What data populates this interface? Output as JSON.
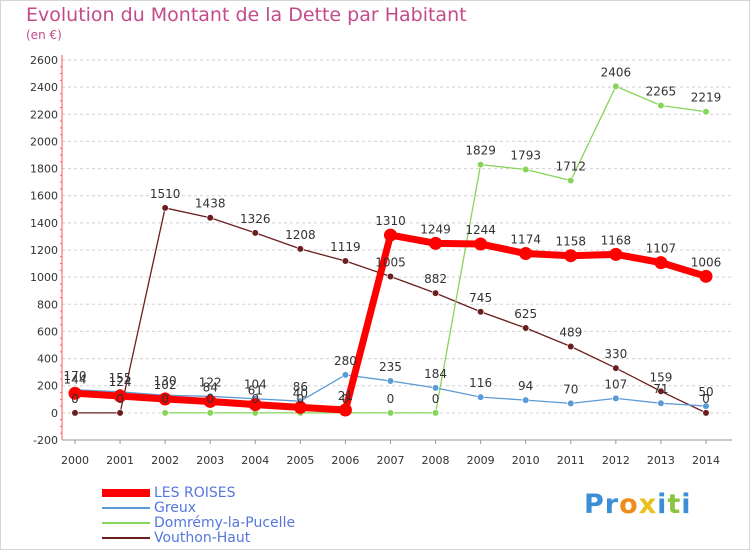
{
  "chart_data": {
    "type": "line",
    "title": "Evolution du Montant de la Dette par Habitant",
    "subtitle": "(en €)",
    "x": [
      "2000",
      "2001",
      "2002",
      "2003",
      "2004",
      "2005",
      "2006",
      "2007",
      "2008",
      "2009",
      "2010",
      "2011",
      "2012",
      "2013",
      "2014"
    ],
    "ylim": [
      -200,
      2600
    ],
    "yticks": [
      "-200",
      "0",
      "200",
      "400",
      "600",
      "800",
      "1000",
      "1200",
      "1400",
      "1600",
      "1800",
      "2000",
      "2200",
      "2400",
      "2600"
    ],
    "grid": "horizontal dashed",
    "legend_position": "bottom-left",
    "series": [
      {
        "name": "Vouthon-Haut",
        "color": "#6b1e1e",
        "values": [
          0,
          0,
          1510,
          1438,
          1326,
          1208,
          1119,
          1005,
          882,
          745,
          625,
          489,
          330,
          159,
          0
        ],
        "labels": [
          "0",
          "0",
          "1510",
          "1438",
          "1326",
          "1208",
          "1119",
          "1005",
          "882",
          "745",
          "625",
          "489",
          "330",
          "159",
          "0"
        ]
      },
      {
        "name": "Domrémy-la-Pucelle",
        "color": "#88d45a",
        "values": [
          null,
          null,
          0,
          0,
          0,
          0,
          0,
          0,
          0,
          1829,
          1793,
          1712,
          2406,
          2265,
          2219
        ],
        "labels": [
          "",
          "",
          "0",
          "0",
          "0",
          "0",
          "0",
          "0",
          "0",
          "1829",
          "1793",
          "1712",
          "2406",
          "2265",
          "2219"
        ]
      },
      {
        "name": "Greux",
        "color": "#5b9bd5",
        "values": [
          170,
          155,
          130,
          122,
          104,
          86,
          280,
          235,
          184,
          116,
          94,
          70,
          107,
          71,
          50
        ],
        "labels": [
          "170",
          "155",
          "130",
          "122",
          "104",
          "86",
          "280",
          "235",
          "184",
          "116",
          "94",
          "70",
          "107",
          "71",
          "50"
        ]
      },
      {
        "name": "LES ROISES",
        "color": "#ff0000",
        "values": [
          144,
          124,
          102,
          84,
          61,
          40,
          21,
          1310,
          1249,
          1244,
          1174,
          1158,
          1168,
          1107,
          1006
        ],
        "labels": [
          "144",
          "124",
          "102",
          "84",
          "61",
          "40",
          "21",
          "1310",
          "1249",
          "1244",
          "1174",
          "1158",
          "1168",
          "1107",
          "1006"
        ]
      }
    ],
    "legend": [
      {
        "name": "LES ROISES",
        "color": "#ff0000",
        "thickness": 8
      },
      {
        "name": "Greux",
        "color": "#5b9bd5",
        "thickness": 2
      },
      {
        "name": "Domrémy-la-Pucelle",
        "color": "#88d45a",
        "thickness": 2
      },
      {
        "name": "Vouthon-Haut",
        "color": "#6b1e1e",
        "thickness": 2
      }
    ]
  },
  "logo": {
    "letters": [
      "P",
      "r",
      "o",
      "x",
      "i",
      "t",
      "i"
    ],
    "colors": [
      "#3a8fd6",
      "#3a8fd6",
      "#f08c1a",
      "#e8c21a",
      "#3a8fd6",
      "#8ac440",
      "#3a8fd6"
    ]
  }
}
